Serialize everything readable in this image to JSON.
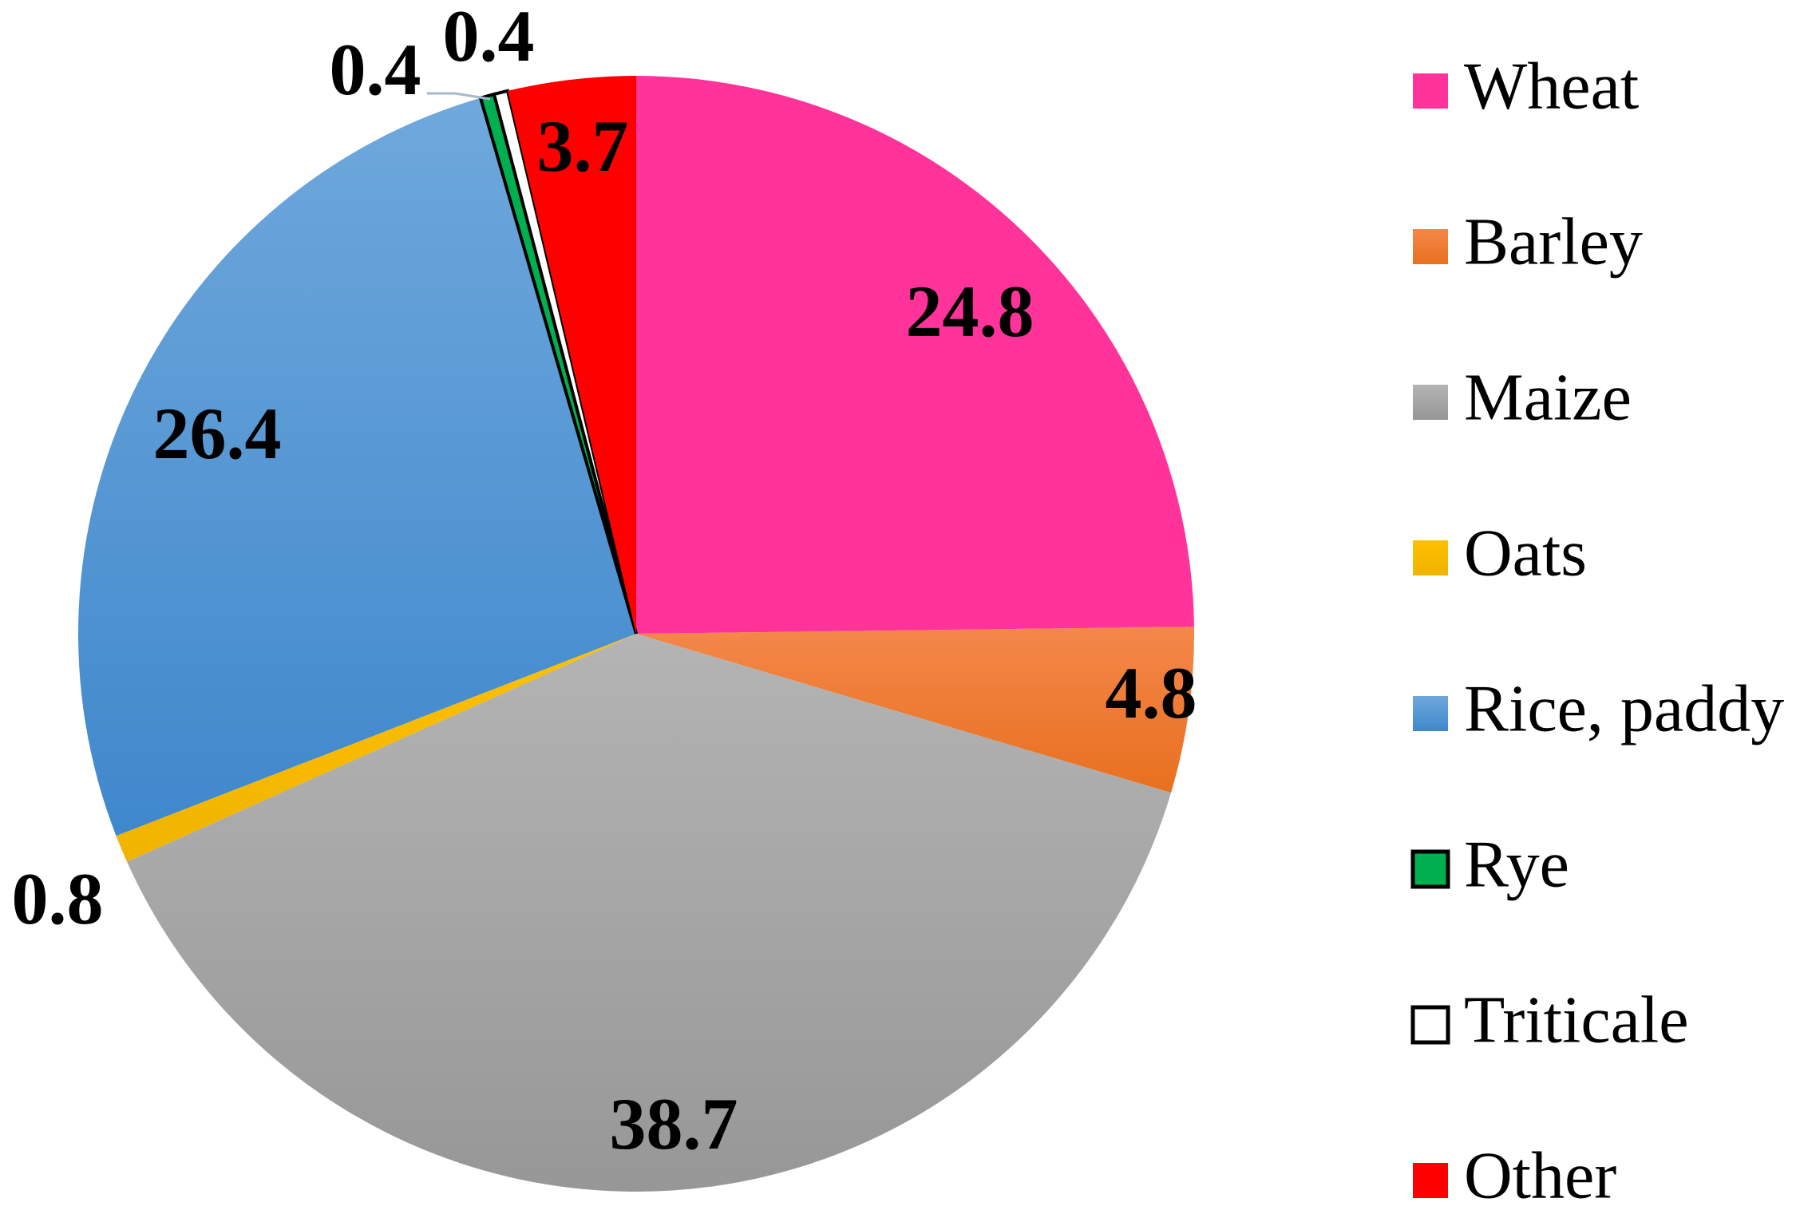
{
  "chart_data": {
    "type": "pie",
    "title": "",
    "start_angle_deg": 0,
    "direction": "clockwise",
    "legend_position": "right",
    "series": [
      {
        "values": [
          24.8,
          4.8,
          38.7,
          0.8,
          26.4,
          0.4,
          0.4,
          3.7
        ]
      }
    ],
    "categories": [
      "Wheat",
      "Barley",
      "Maize",
      "Oats",
      "Rice, paddy",
      "Rye",
      "Triticale",
      "Other"
    ],
    "slices": [
      {
        "label": "Wheat",
        "value": 24.8,
        "display": "24.8",
        "color": "#FF3399",
        "gradient_to": "#FF3399",
        "border": "none"
      },
      {
        "label": "Barley",
        "value": 4.8,
        "display": "4.8",
        "color": "#F4874A",
        "gradient_to": "#E8701F",
        "border": "none"
      },
      {
        "label": "Maize",
        "value": 38.7,
        "display": "38.7",
        "color": "#B4B4B4",
        "gradient_to": "#979797",
        "border": "none"
      },
      {
        "label": "Oats",
        "value": 0.8,
        "display": "0.8",
        "color": "#FFC000",
        "gradient_to": "#F0B400",
        "border": "none"
      },
      {
        "label": "Rice, paddy",
        "value": 26.4,
        "display": "26.4",
        "color": "#6FA8DC",
        "gradient_to": "#3F88CC",
        "border": "none"
      },
      {
        "label": "Rye",
        "value": 0.4,
        "display": "0.4",
        "color": "#00B050",
        "gradient_to": "#00B050",
        "border": "#000000"
      },
      {
        "label": "Triticale",
        "value": 0.4,
        "display": "0.4",
        "color": "#FFFFFF",
        "gradient_to": "#FFFFFF",
        "border": "#000000"
      },
      {
        "label": "Other",
        "value": 3.7,
        "display": "3.7",
        "color": "#FF0000",
        "gradient_to": "#FF0000",
        "border": "none"
      }
    ]
  }
}
